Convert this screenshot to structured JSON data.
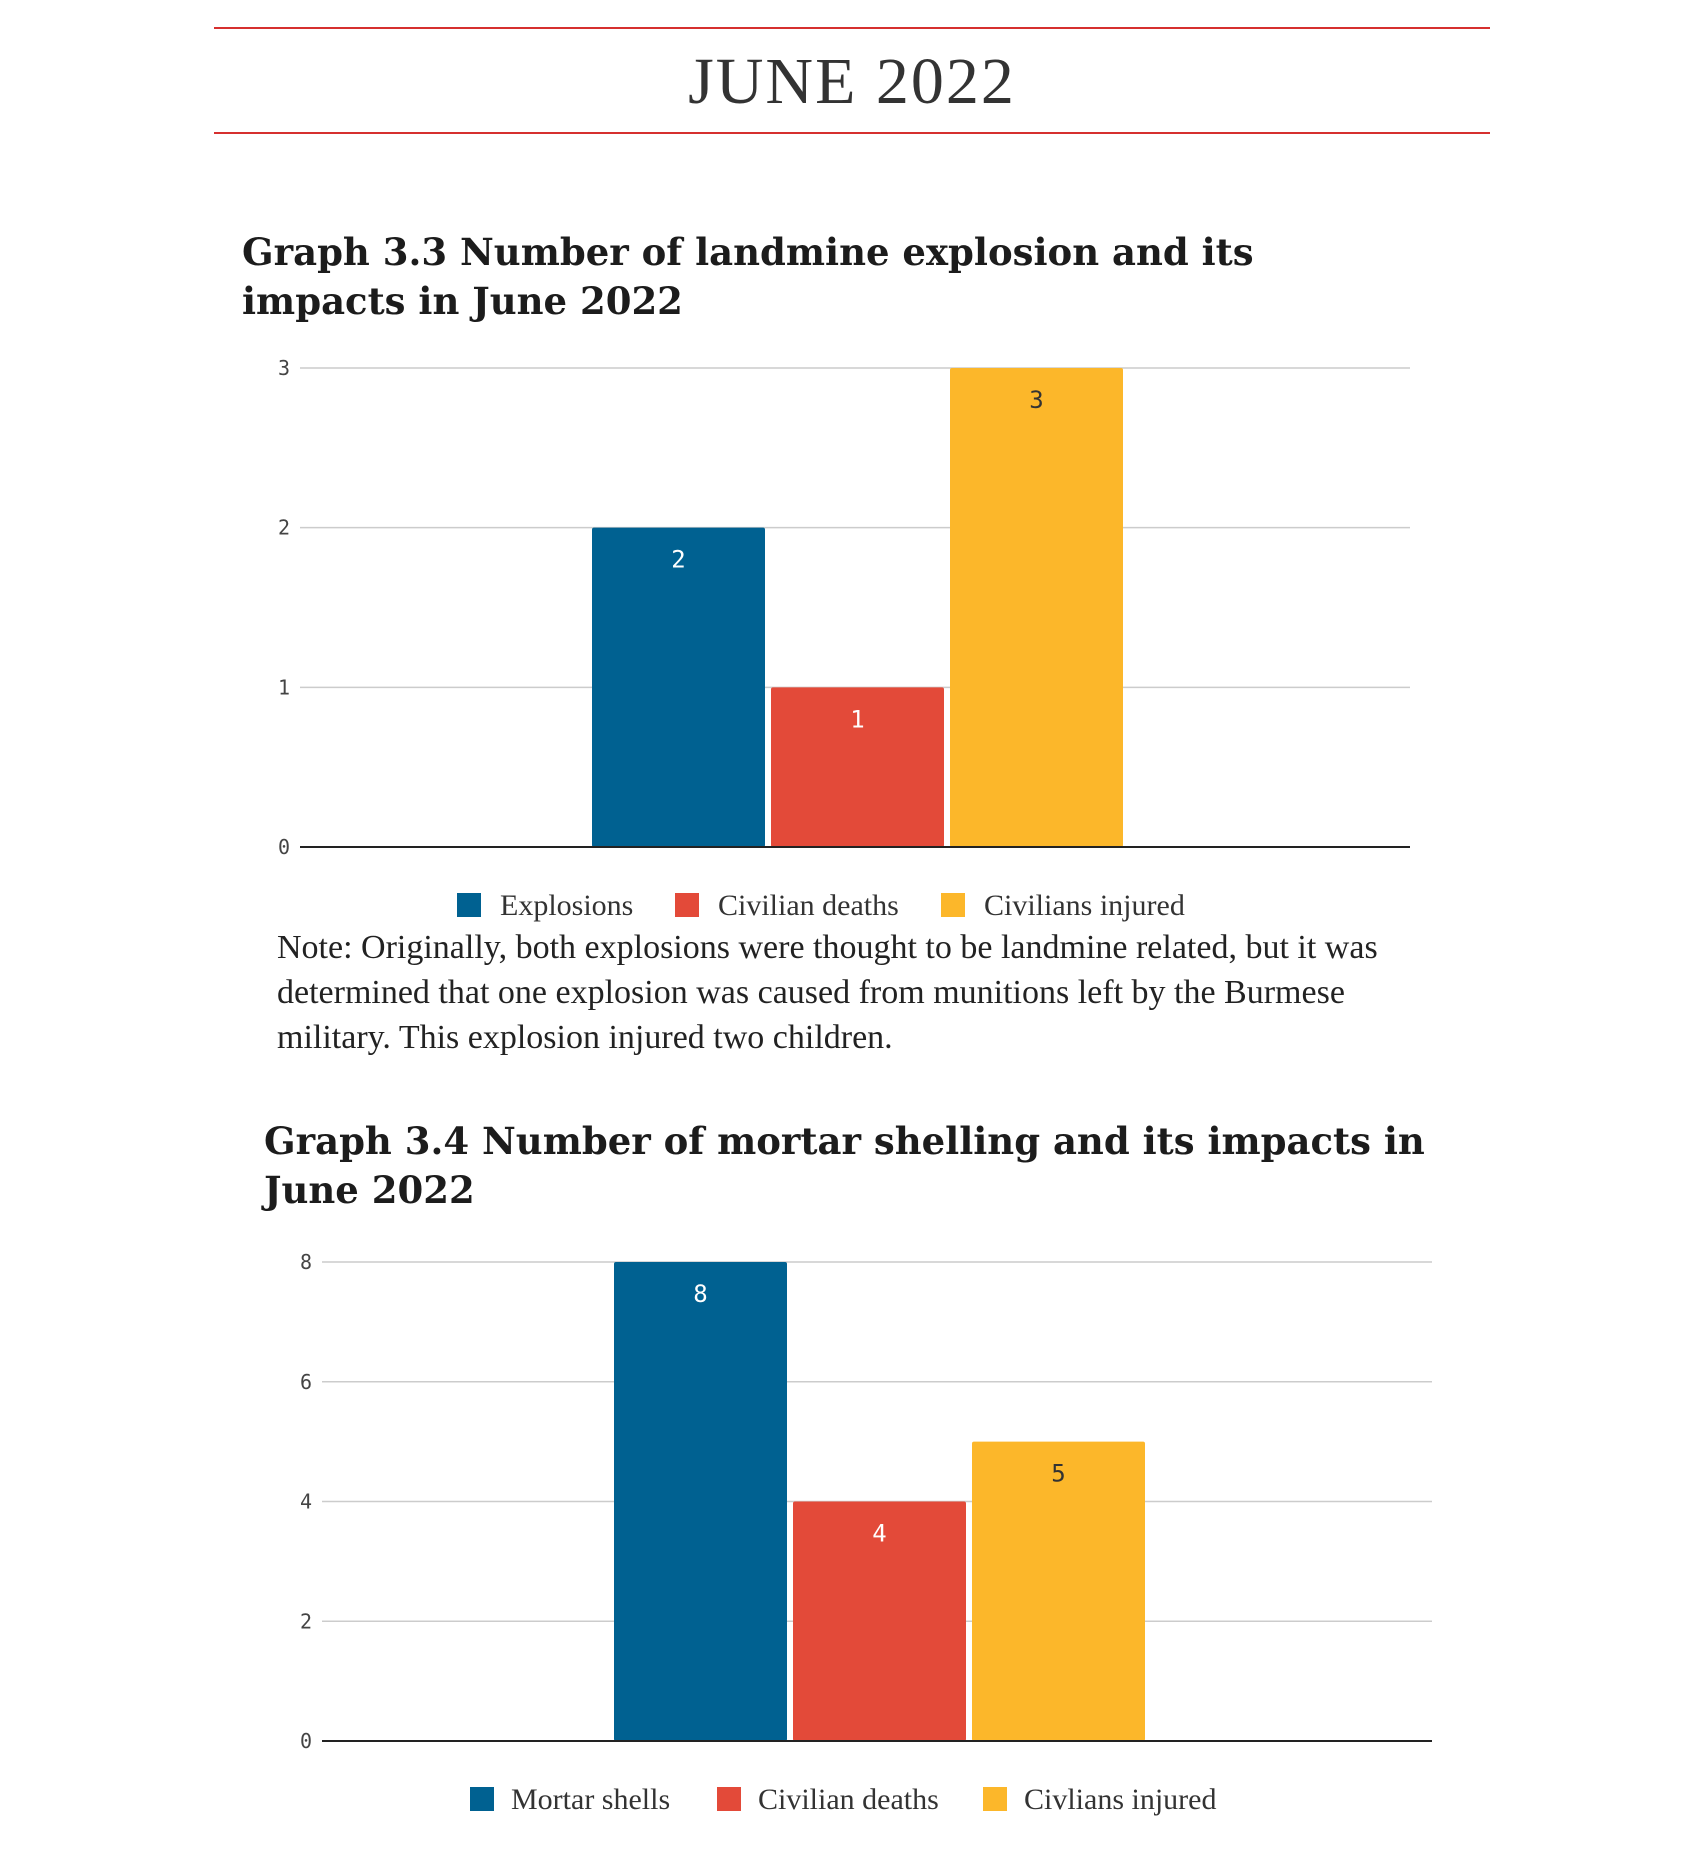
{
  "page": {
    "heading": "JUNE 2022",
    "note": "Note: Originally, both explosions were thought to be landmine related, but it was determined that one explosion was caused from munitions left by the Burmese military. This explosion injured two children."
  },
  "colors": {
    "rule": "#d6302f",
    "blue": "#006191",
    "red": "#e34a39",
    "yellow": "#fcb72a",
    "grid": "#cccccc",
    "axis": "#222222"
  },
  "chart_data": [
    {
      "id": "graph-3-3",
      "type": "bar",
      "title": "Graph 3.3 Number of landmine explosion and its impacts in June 2022",
      "xlabel": "",
      "ylabel": "",
      "ylim": [
        0,
        3
      ],
      "yticks": [
        "0",
        "1",
        "2",
        "3"
      ],
      "grid": true,
      "legend_position": "bottom",
      "series": [
        {
          "name": "Explosions",
          "value": 2,
          "label": "2",
          "color": "#006191"
        },
        {
          "name": "Civilian deaths",
          "value": 1,
          "label": "1",
          "color": "#e34a39"
        },
        {
          "name": "Civilians injured",
          "value": 3,
          "label": "3",
          "color": "#fcb72a"
        }
      ]
    },
    {
      "id": "graph-3-4",
      "type": "bar",
      "title": "Graph 3.4 Number of mortar shelling and its impacts in June 2022",
      "xlabel": "",
      "ylabel": "",
      "ylim": [
        0,
        8
      ],
      "yticks": [
        "0",
        "2",
        "4",
        "6",
        "8"
      ],
      "grid": true,
      "legend_position": "bottom",
      "series": [
        {
          "name": "Mortar shells",
          "value": 8,
          "label": "8",
          "color": "#006191"
        },
        {
          "name": "Civilian deaths",
          "value": 4,
          "label": "4",
          "color": "#e34a39"
        },
        {
          "name": "Civlians injured",
          "value": 5,
          "label": "5",
          "color": "#fcb72a"
        }
      ]
    }
  ]
}
